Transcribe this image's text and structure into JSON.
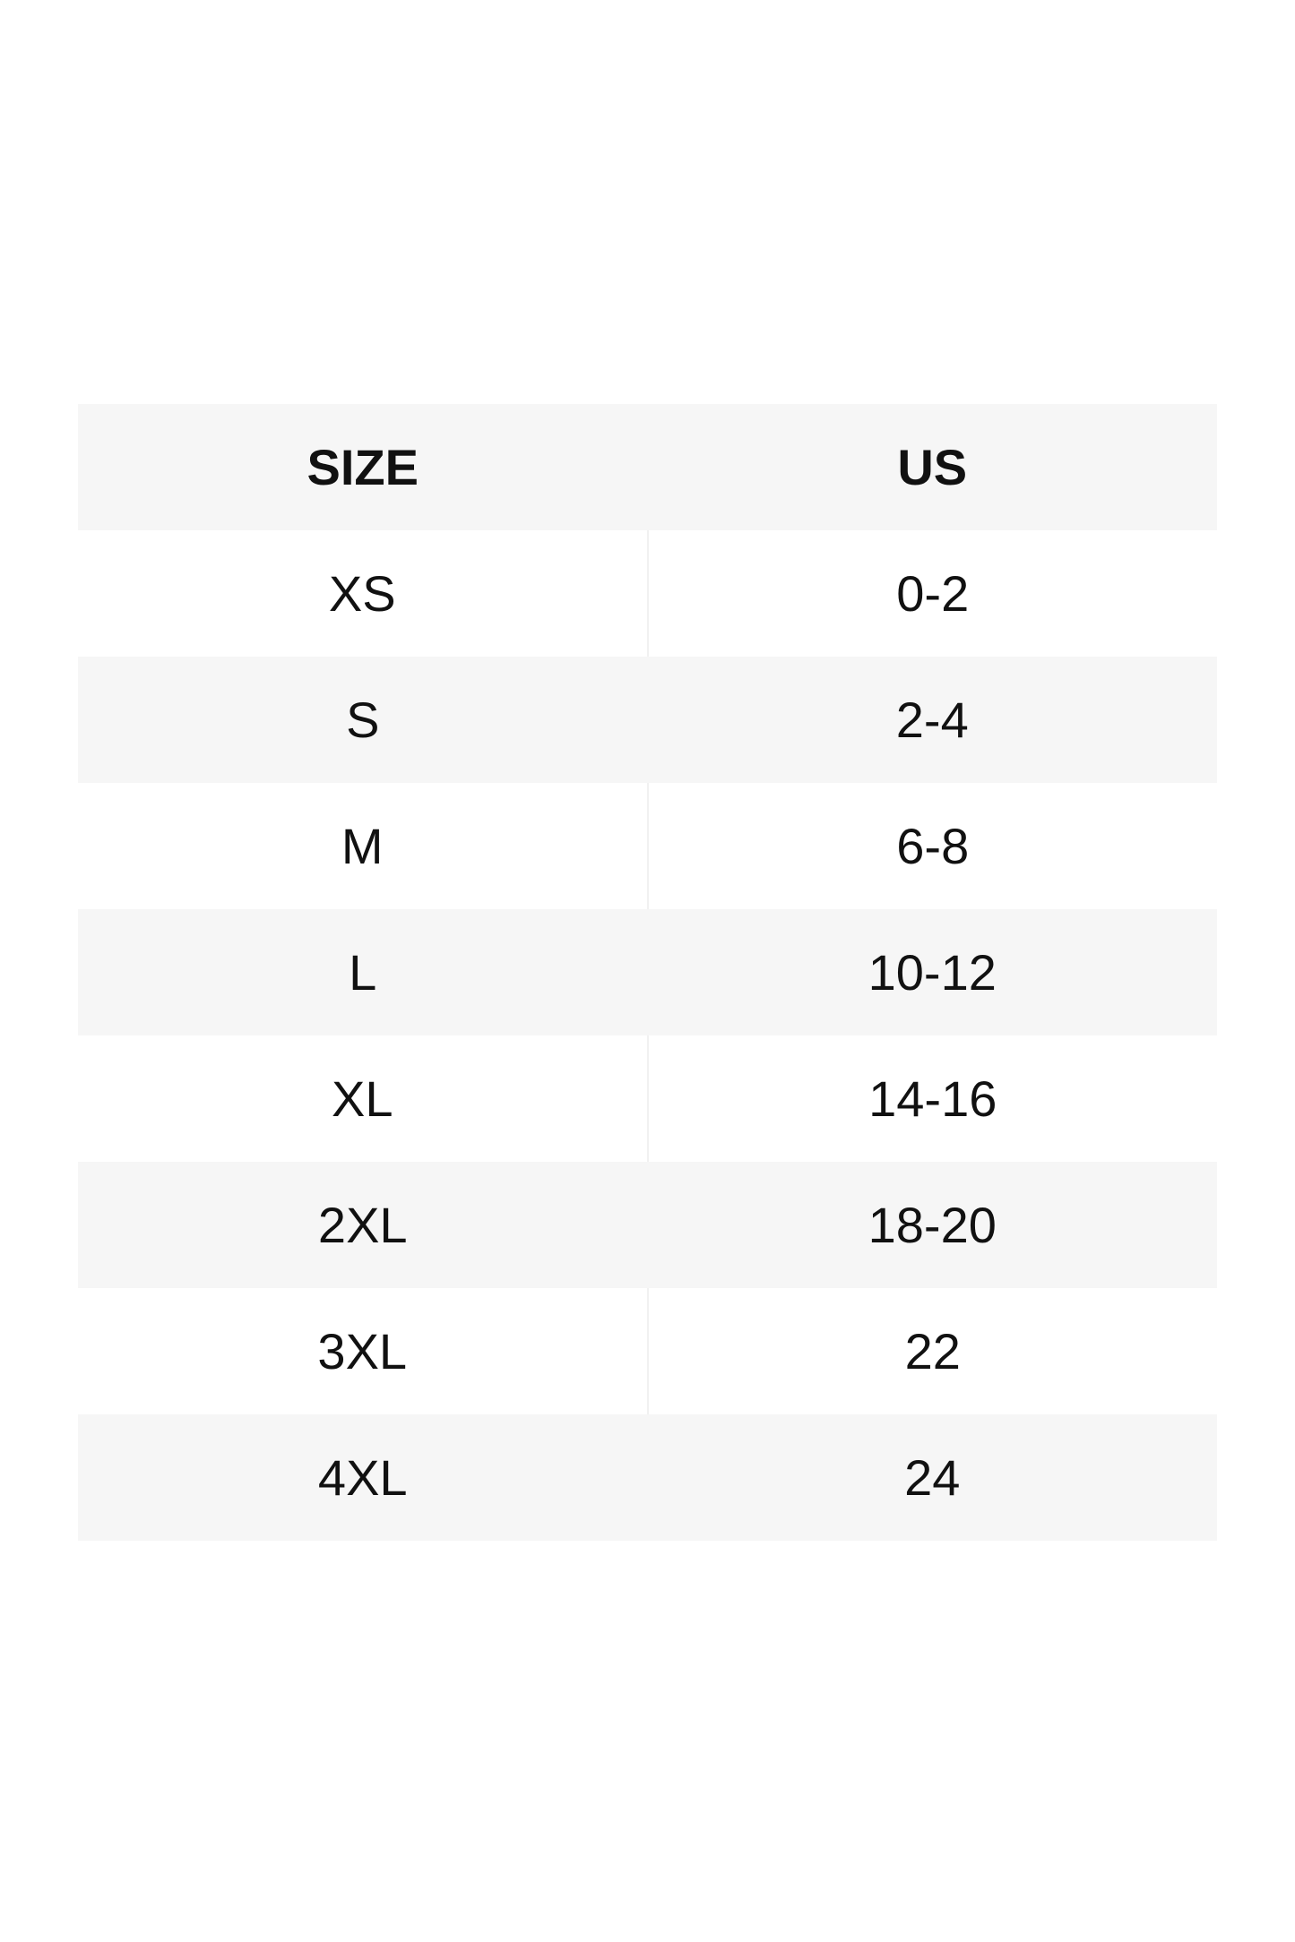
{
  "table": {
    "header": [
      "SIZE",
      "US"
    ],
    "rows": [
      [
        "XS",
        "0-2"
      ],
      [
        "S",
        "2-4"
      ],
      [
        "M",
        "6-8"
      ],
      [
        "L",
        "10-12"
      ],
      [
        "XL",
        "14-16"
      ],
      [
        "2XL",
        "18-20"
      ],
      [
        "3XL",
        "22"
      ],
      [
        "4XL",
        "24"
      ]
    ]
  }
}
